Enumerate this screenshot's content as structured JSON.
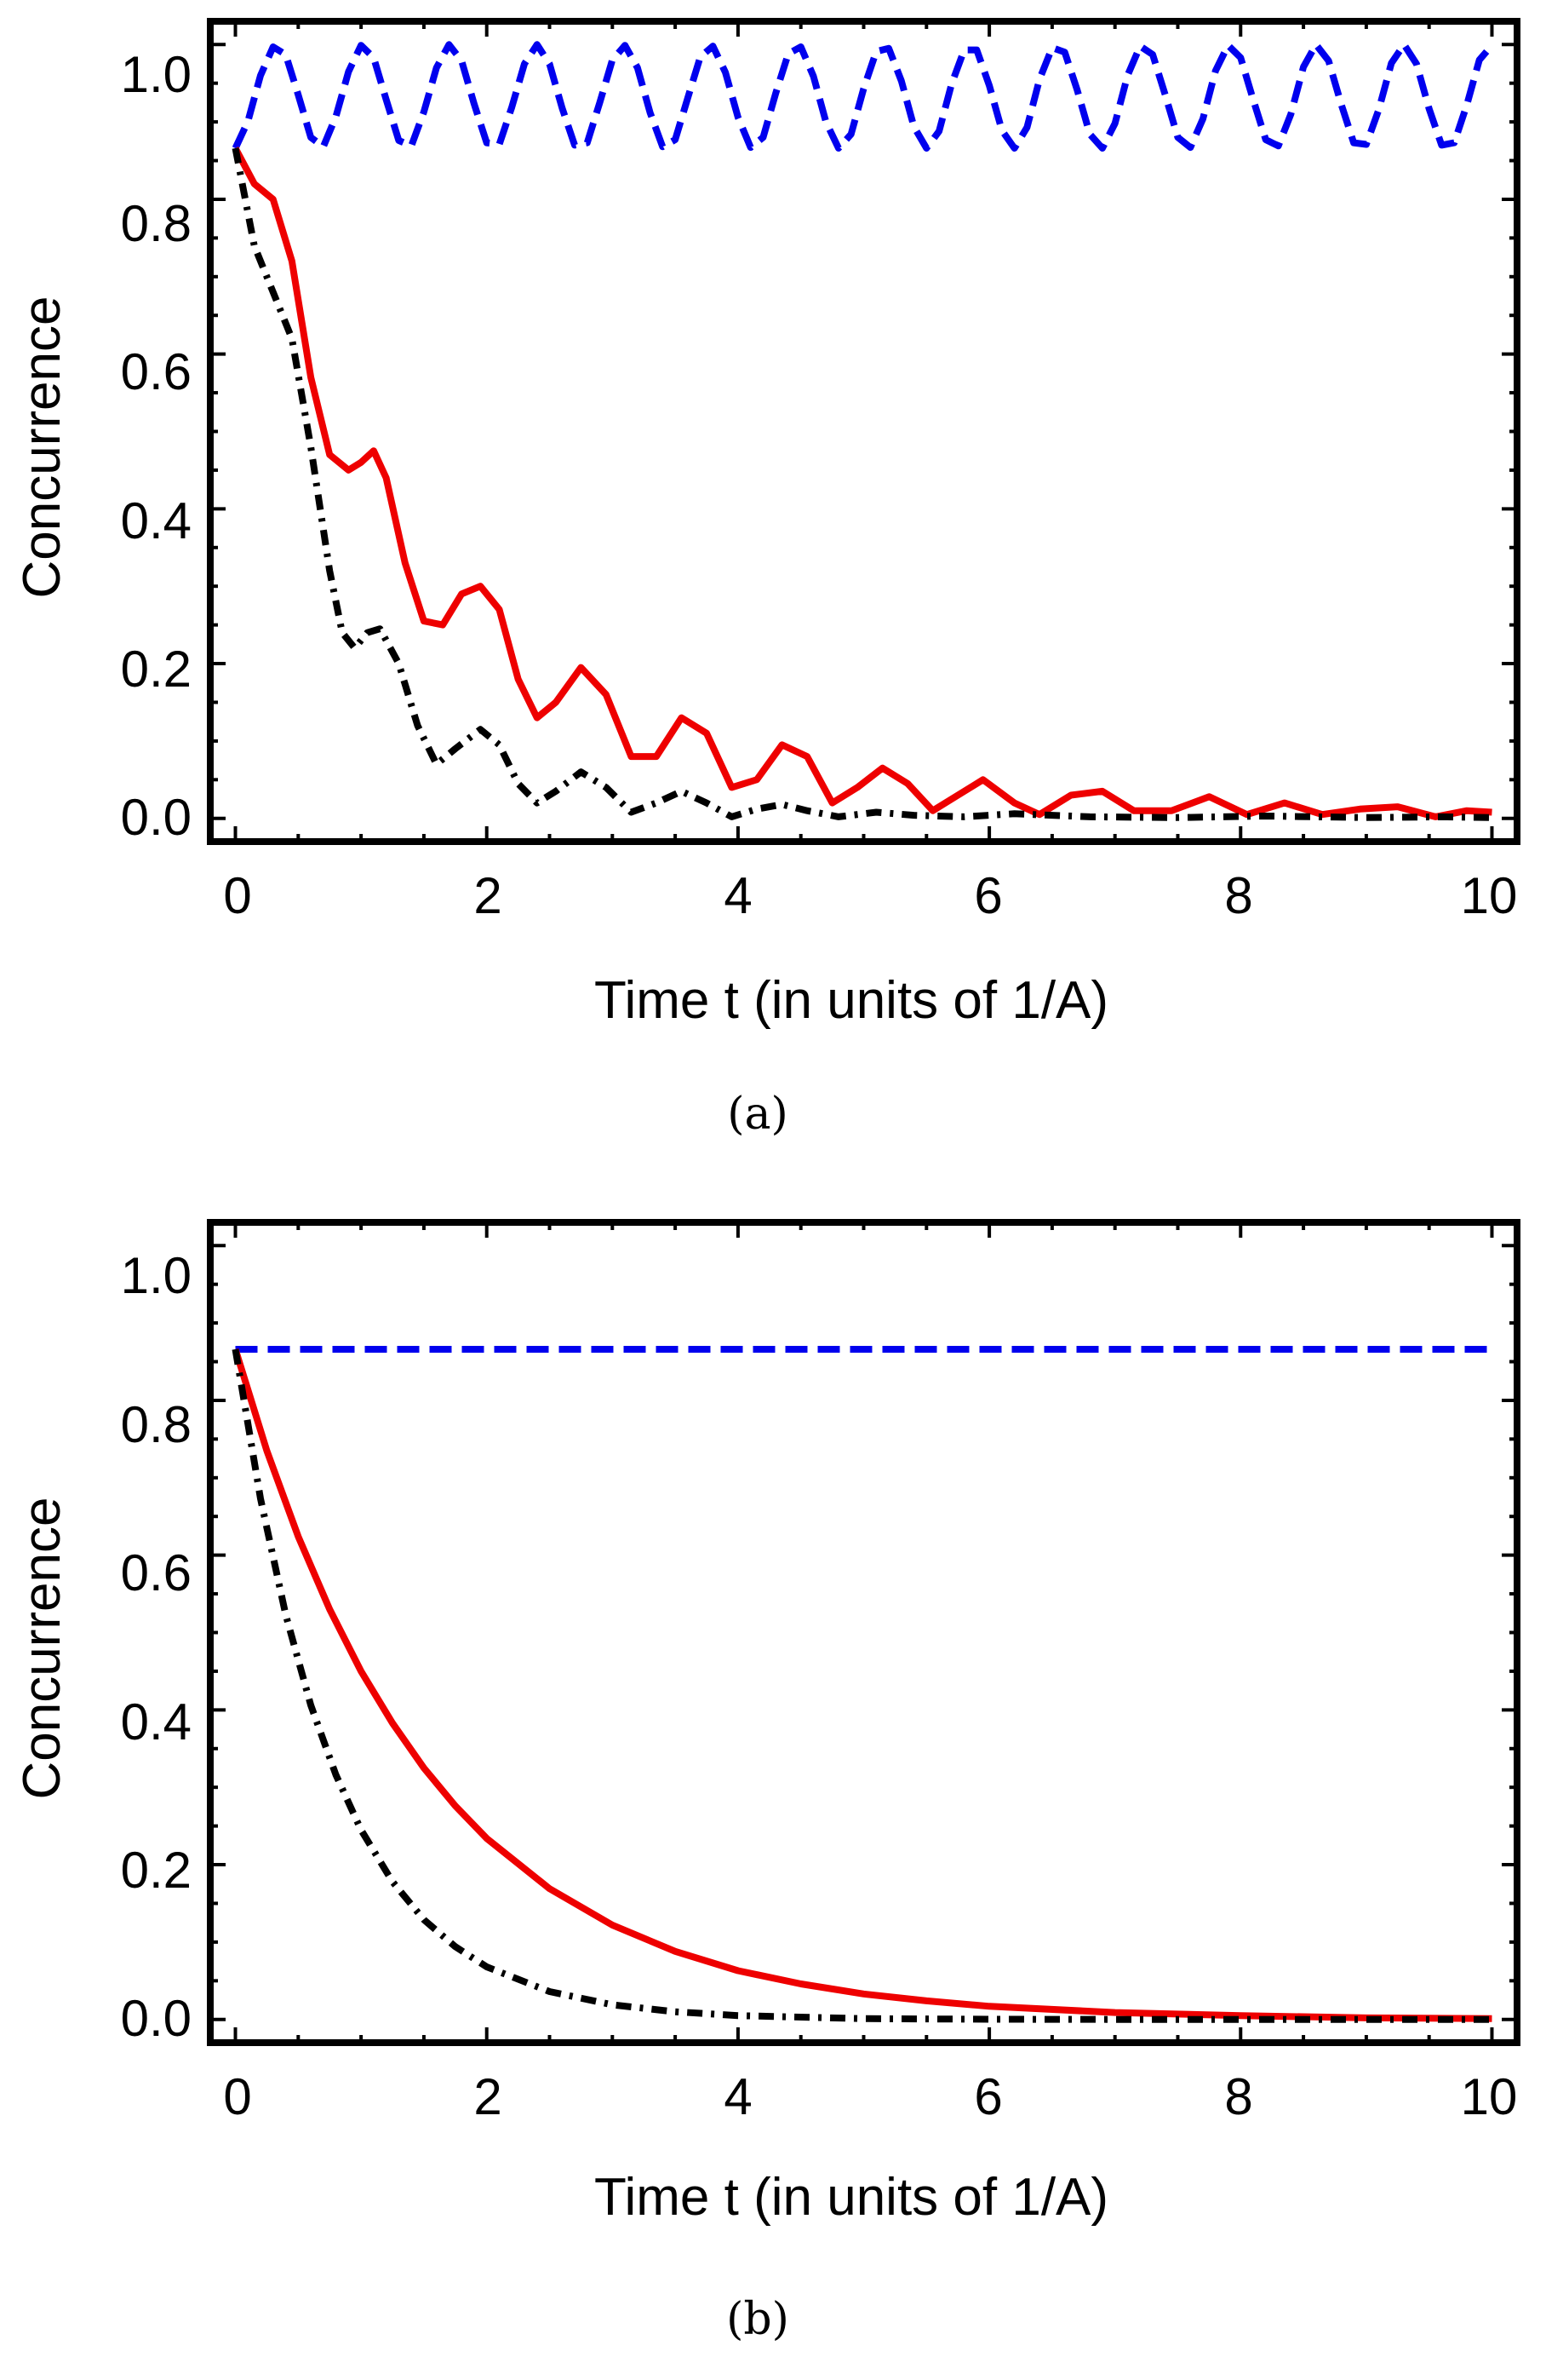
{
  "chart_data": [
    {
      "panel": "a",
      "type": "line",
      "caption": "(a)",
      "xlabel": "Time t (in units of 1/A)",
      "ylabel": "Concurrence",
      "xlim": [
        -0.2,
        10.2
      ],
      "ylim": [
        -0.03,
        1.03
      ],
      "x_ticks": [
        "0",
        "2",
        "4",
        "6",
        "8",
        "10"
      ],
      "y_ticks": [
        "0.0",
        "0.2",
        "0.4",
        "0.6",
        "0.8",
        "1.0"
      ],
      "grid": false,
      "series": [
        {
          "name": "blue-dashed",
          "color": "#0000ee",
          "style": "dashed",
          "x": [
            0,
            0.1,
            0.2,
            0.3,
            0.4,
            0.5,
            0.6,
            0.7,
            0.8,
            0.9,
            1.0,
            1.1,
            1.2,
            1.3,
            1.4,
            1.5,
            1.6,
            1.7,
            1.8,
            1.9,
            2.0,
            2.1,
            2.2,
            2.3,
            2.4,
            2.5,
            2.6,
            2.7,
            2.8,
            2.9,
            3.0,
            3.1,
            3.2,
            3.3,
            3.4,
            3.5,
            3.6,
            3.7,
            3.8,
            3.9,
            4.0,
            4.1,
            4.2,
            4.3,
            4.4,
            4.5,
            4.6,
            4.7,
            4.8,
            4.9,
            5.0,
            5.1,
            5.2,
            5.3,
            5.4,
            5.5,
            5.6,
            5.7,
            5.8,
            5.9,
            6.0,
            6.1,
            6.2,
            6.3,
            6.4,
            6.5,
            6.6,
            6.7,
            6.8,
            6.9,
            7.0,
            7.1,
            7.2,
            7.3,
            7.4,
            7.5,
            7.6,
            7.7,
            7.8,
            7.9,
            8.0,
            8.1,
            8.2,
            8.3,
            8.4,
            8.5,
            8.6,
            8.7,
            8.8,
            8.9,
            9.0,
            9.1,
            9.2,
            9.3,
            9.4,
            9.5,
            9.6,
            9.7,
            9.8,
            9.9,
            10.0
          ],
          "y": [
            0.866,
            0.901,
            0.96,
            0.997,
            0.987,
            0.935,
            0.88,
            0.868,
            0.907,
            0.965,
            0.999,
            0.983,
            0.929,
            0.876,
            0.869,
            0.913,
            0.97,
            1.0,
            0.979,
            0.923,
            0.873,
            0.871,
            0.919,
            0.975,
            1.0,
            0.975,
            0.918,
            0.87,
            0.873,
            0.925,
            0.98,
            0.999,
            0.97,
            0.912,
            0.868,
            0.877,
            0.931,
            0.984,
            0.998,
            0.964,
            0.906,
            0.867,
            0.88,
            0.937,
            0.988,
            0.997,
            0.959,
            0.9,
            0.866,
            0.884,
            0.943,
            0.991,
            0.995,
            0.953,
            0.894,
            0.866,
            0.888,
            0.949,
            0.993,
            0.993,
            0.947,
            0.889,
            0.866,
            0.893,
            0.955,
            0.996,
            0.99,
            0.941,
            0.884,
            0.866,
            0.898,
            0.96,
            0.998,
            0.987,
            0.935,
            0.88,
            0.867,
            0.904,
            0.966,
            0.999,
            0.983,
            0.929,
            0.877,
            0.869,
            0.91,
            0.971,
            1.0,
            0.979,
            0.923,
            0.873,
            0.871,
            0.916,
            0.976,
            1.0,
            0.975,
            0.917,
            0.87,
            0.873,
            0.922,
            0.98,
            0.999
          ]
        },
        {
          "name": "red-solid",
          "color": "#ee0000",
          "style": "solid",
          "x": [
            0,
            0.15,
            0.3,
            0.45,
            0.6,
            0.75,
            0.9,
            1.0,
            1.1,
            1.2,
            1.35,
            1.5,
            1.65,
            1.8,
            1.95,
            2.1,
            2.25,
            2.4,
            2.55,
            2.75,
            2.95,
            3.15,
            3.35,
            3.55,
            3.75,
            3.95,
            4.15,
            4.35,
            4.55,
            4.75,
            4.95,
            5.15,
            5.35,
            5.55,
            5.75,
            5.95,
            6.2,
            6.4,
            6.65,
            6.9,
            7.15,
            7.45,
            7.75,
            8.05,
            8.35,
            8.65,
            8.95,
            9.25,
            9.55,
            9.8,
            10.0
          ],
          "y": [
            0.866,
            0.82,
            0.8,
            0.72,
            0.57,
            0.47,
            0.45,
            0.46,
            0.475,
            0.44,
            0.33,
            0.255,
            0.25,
            0.29,
            0.3,
            0.27,
            0.18,
            0.13,
            0.15,
            0.195,
            0.16,
            0.08,
            0.08,
            0.13,
            0.11,
            0.04,
            0.05,
            0.095,
            0.08,
            0.02,
            0.04,
            0.065,
            0.045,
            0.01,
            0.03,
            0.05,
            0.02,
            0.005,
            0.03,
            0.035,
            0.01,
            0.01,
            0.028,
            0.005,
            0.02,
            0.005,
            0.012,
            0.015,
            0.002,
            0.01,
            0.008
          ]
        },
        {
          "name": "black-dashdot",
          "color": "#000000",
          "style": "dashdot",
          "x": [
            0,
            0.15,
            0.3,
            0.45,
            0.6,
            0.75,
            0.85,
            0.95,
            1.05,
            1.15,
            1.3,
            1.45,
            1.6,
            1.75,
            1.95,
            2.1,
            2.25,
            2.4,
            2.55,
            2.75,
            2.95,
            3.15,
            3.35,
            3.55,
            3.75,
            3.95,
            4.15,
            4.35,
            4.55,
            4.8,
            5.1,
            5.4,
            5.8,
            6.2,
            6.8,
            7.5,
            8.2,
            9.0,
            9.6,
            10.0
          ],
          "y": [
            0.866,
            0.74,
            0.68,
            0.62,
            0.48,
            0.32,
            0.24,
            0.22,
            0.24,
            0.245,
            0.2,
            0.12,
            0.07,
            0.09,
            0.115,
            0.095,
            0.045,
            0.02,
            0.035,
            0.06,
            0.04,
            0.008,
            0.02,
            0.035,
            0.02,
            0.002,
            0.012,
            0.018,
            0.01,
            0.002,
            0.008,
            0.004,
            0.002,
            0.006,
            0.002,
            0.001,
            0.003,
            0.001,
            0.002,
            0.001
          ]
        }
      ]
    },
    {
      "panel": "b",
      "type": "line",
      "caption": "(b)",
      "xlabel": "Time t (in units of 1/A)",
      "ylabel": "Concurrence",
      "xlim": [
        -0.2,
        10.2
      ],
      "ylim": [
        -0.03,
        1.03
      ],
      "x_ticks": [
        "0",
        "2",
        "4",
        "6",
        "8",
        "10"
      ],
      "y_ticks": [
        "0.0",
        "0.2",
        "0.4",
        "0.6",
        "0.8",
        "1.0"
      ],
      "grid": false,
      "series": [
        {
          "name": "blue-dashed",
          "color": "#0000ee",
          "style": "dashed",
          "x": [
            0,
            10
          ],
          "y": [
            0.866,
            0.866
          ]
        },
        {
          "name": "red-solid",
          "color": "#ee0000",
          "style": "solid",
          "x": [
            0,
            0.25,
            0.5,
            0.75,
            1.0,
            1.25,
            1.5,
            1.75,
            2.0,
            2.5,
            3.0,
            3.5,
            4.0,
            4.5,
            5.0,
            5.5,
            6.0,
            7.0,
            8.0,
            9.0,
            10.0
          ],
          "y": [
            0.866,
            0.735,
            0.624,
            0.53,
            0.45,
            0.383,
            0.325,
            0.276,
            0.234,
            0.169,
            0.122,
            0.088,
            0.063,
            0.046,
            0.033,
            0.024,
            0.017,
            0.009,
            0.005,
            0.002,
            0.001
          ]
        },
        {
          "name": "black-dashdot",
          "color": "#000000",
          "style": "dashdot",
          "x": [
            0,
            0.2,
            0.4,
            0.6,
            0.8,
            1.0,
            1.25,
            1.5,
            1.75,
            2.0,
            2.5,
            3.0,
            3.5,
            4.0,
            5.0,
            6.0,
            7.0,
            8.0,
            9.0,
            10.0
          ],
          "y": [
            0.866,
            0.673,
            0.523,
            0.406,
            0.316,
            0.245,
            0.178,
            0.129,
            0.094,
            0.068,
            0.036,
            0.019,
            0.01,
            0.005,
            0.001,
            0.0003,
            0.0001,
            0.0,
            0.0,
            0.0
          ]
        }
      ]
    }
  ]
}
